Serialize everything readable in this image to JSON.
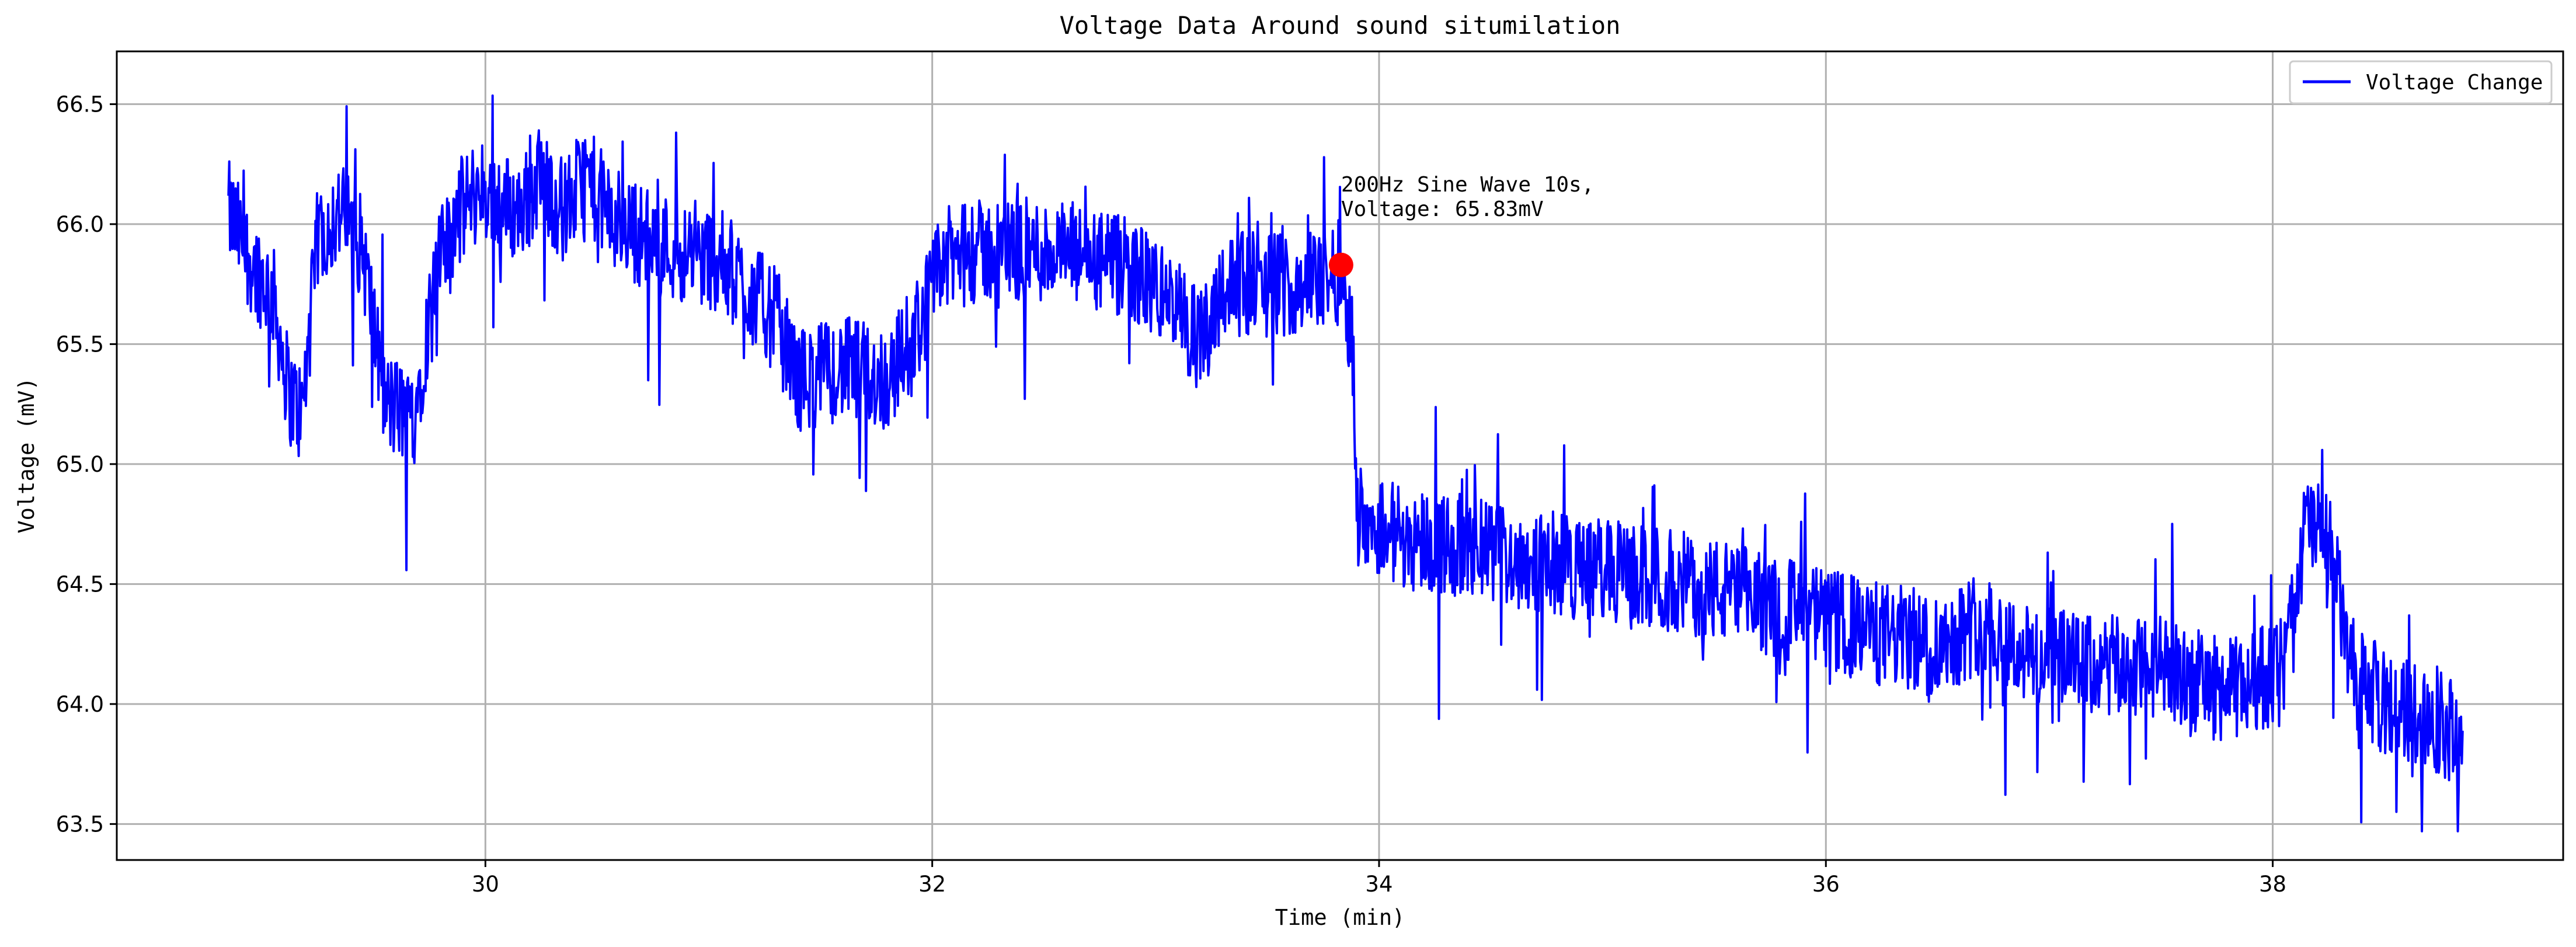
{
  "chart_data": {
    "type": "line",
    "title": "Voltage Data Around sound situmilation",
    "xlabel": "Time (min)",
    "ylabel": "Voltage (mV)",
    "xlim": [
      28.35,
      39.3
    ],
    "ylim": [
      63.35,
      66.72
    ],
    "xticks": [
      30,
      32,
      34,
      36,
      38
    ],
    "xtick_labels": [
      "30",
      "32",
      "34",
      "36",
      "38"
    ],
    "yticks": [
      63.5,
      64.0,
      64.5,
      65.0,
      65.5,
      66.0,
      66.5
    ],
    "ytick_labels": [
      "63.5",
      "64.0",
      "64.5",
      "65.0",
      "65.5",
      "66.0",
      "66.5"
    ],
    "grid": true,
    "legend_position": "top-right",
    "series": [
      {
        "name": "Voltage Change",
        "color": "#0000ff",
        "noise": 0.22,
        "points": [
          [
            28.85,
            66.05
          ],
          [
            28.95,
            65.85
          ],
          [
            29.05,
            65.7
          ],
          [
            29.12,
            65.3
          ],
          [
            29.18,
            65.2
          ],
          [
            29.25,
            65.95
          ],
          [
            29.35,
            66.05
          ],
          [
            29.45,
            65.9
          ],
          [
            29.55,
            65.25
          ],
          [
            29.68,
            65.2
          ],
          [
            29.78,
            65.8
          ],
          [
            29.88,
            66.05
          ],
          [
            29.98,
            66.15
          ],
          [
            30.05,
            66.1
          ],
          [
            30.15,
            66.05
          ],
          [
            30.25,
            66.2
          ],
          [
            30.35,
            66.05
          ],
          [
            30.45,
            66.2
          ],
          [
            30.55,
            66.05
          ],
          [
            30.7,
            65.95
          ],
          [
            30.9,
            65.88
          ],
          [
            31.05,
            65.85
          ],
          [
            31.2,
            65.7
          ],
          [
            31.3,
            65.6
          ],
          [
            31.4,
            65.35
          ],
          [
            31.6,
            65.4
          ],
          [
            31.8,
            65.35
          ],
          [
            31.95,
            65.6
          ],
          [
            32.05,
            65.85
          ],
          [
            32.3,
            65.9
          ],
          [
            32.6,
            65.88
          ],
          [
            32.9,
            65.8
          ],
          [
            33.05,
            65.7
          ],
          [
            33.2,
            65.5
          ],
          [
            33.3,
            65.75
          ],
          [
            33.6,
            65.75
          ],
          [
            33.83,
            65.8
          ],
          [
            33.88,
            65.55
          ],
          [
            33.9,
            64.8
          ],
          [
            34.1,
            64.7
          ],
          [
            34.4,
            64.65
          ],
          [
            34.7,
            64.6
          ],
          [
            35.0,
            64.55
          ],
          [
            35.4,
            64.5
          ],
          [
            35.8,
            64.4
          ],
          [
            36.2,
            64.3
          ],
          [
            36.5,
            64.25
          ],
          [
            36.7,
            64.35
          ],
          [
            36.9,
            64.2
          ],
          [
            37.2,
            64.15
          ],
          [
            37.5,
            64.15
          ],
          [
            37.8,
            64.05
          ],
          [
            38.05,
            64.15
          ],
          [
            38.15,
            64.75
          ],
          [
            38.25,
            64.7
          ],
          [
            38.35,
            64.15
          ],
          [
            38.5,
            64.0
          ],
          [
            38.7,
            63.95
          ],
          [
            38.85,
            63.85
          ]
        ]
      }
    ],
    "annotations": [
      {
        "x": 33.83,
        "y": 65.83,
        "color": "#ff0000",
        "line1": "200Hz Sine Wave 10s,",
        "line2": "Voltage: 65.83mV"
      }
    ]
  }
}
